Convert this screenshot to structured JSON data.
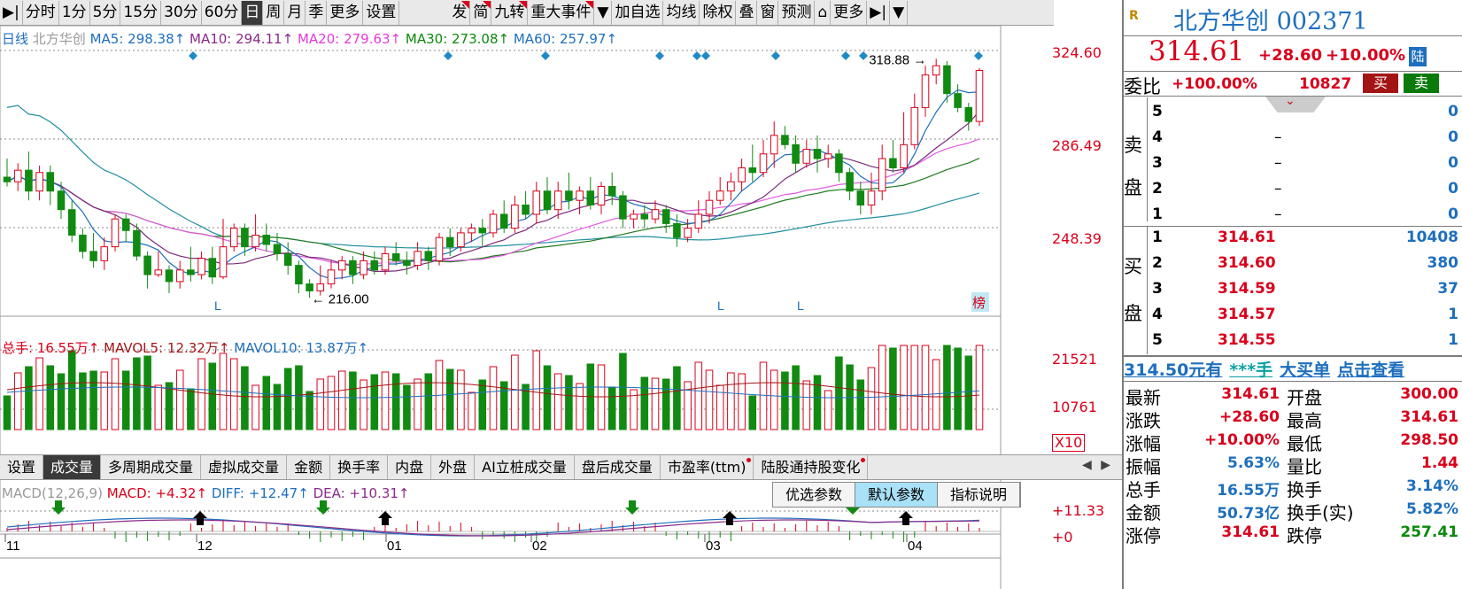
{
  "toolbar": {
    "items": [
      {
        "label": "分时",
        "active": false,
        "mark": false
      },
      {
        "label": "1分",
        "active": false,
        "mark": false
      },
      {
        "label": "5分",
        "active": false,
        "mark": false
      },
      {
        "label": "15分",
        "active": false,
        "mark": false
      },
      {
        "label": "30分",
        "active": false,
        "mark": false
      },
      {
        "label": "60分",
        "active": false,
        "mark": false
      },
      {
        "label": "日",
        "active": true,
        "mark": false
      },
      {
        "label": "周",
        "active": false,
        "mark": false
      },
      {
        "label": "月",
        "active": false,
        "mark": false
      },
      {
        "label": "季",
        "active": false,
        "mark": false
      },
      {
        "label": "更多",
        "active": false,
        "mark": false
      },
      {
        "label": "设置",
        "active": false,
        "mark": false
      }
    ],
    "right_items": [
      {
        "label": "发",
        "mark": true
      },
      {
        "label": "简",
        "mark": true
      },
      {
        "label": "九转",
        "mark": true
      },
      {
        "label": "重大事件",
        "mark": true
      },
      {
        "label": "▼",
        "mark": false
      },
      {
        "label": "加自选",
        "mark": false
      },
      {
        "label": "均线",
        "mark": false
      },
      {
        "label": "除权",
        "mark": false
      },
      {
        "label": "叠",
        "mark": false
      },
      {
        "label": "窗",
        "mark": false
      },
      {
        "label": "预测",
        "mark": false
      },
      {
        "label": "⌂",
        "mark": false
      },
      {
        "label": "更多",
        "mark": false
      },
      {
        "label": "▶|",
        "mark": false
      },
      {
        "label": "▼",
        "mark": false
      }
    ]
  },
  "price_legend": {
    "period": "日线",
    "name": "北方华创",
    "ma5": "MA5: 298.38↑",
    "ma10": "MA10: 294.11↑",
    "ma20": "MA20: 279.63↑",
    "ma30": "MA30: 273.08↑",
    "ma60": "MA60: 257.97↑"
  },
  "vol_legend": {
    "total": "总手: 16.55万↑",
    "mavol5": "MAVOL5: 12.32万↑",
    "mavol10": "MAVOL10: 13.87万↑"
  },
  "macd_legend": {
    "title": "MACD(12,26,9)",
    "macd": "MACD: +4.32↑",
    "diff": "DIFF: +12.47↑",
    "dea": "DEA: +10.31↑"
  },
  "price_axis": [
    "324.60",
    "286.49",
    "248.39"
  ],
  "vol_axis": [
    "21521",
    "10761",
    "X10"
  ],
  "macd_axis": [
    "+11.33",
    "+0"
  ],
  "date_axis": [
    "11",
    "12",
    "01",
    "02",
    "03",
    "04"
  ],
  "annotations": {
    "high": "318.88",
    "low": "216.00",
    "l_marks": [
      "L",
      "L",
      "L"
    ],
    "bang": "榜"
  },
  "bottom_tabs": [
    {
      "label": "设置",
      "active": false,
      "dot": false
    },
    {
      "label": "成交量",
      "active": true,
      "dot": false
    },
    {
      "label": "多周期成交量",
      "active": false,
      "dot": false
    },
    {
      "label": "虚拟成交量",
      "active": false,
      "dot": false
    },
    {
      "label": "金额",
      "active": false,
      "dot": false
    },
    {
      "label": "换手率",
      "active": false,
      "dot": false
    },
    {
      "label": "内盘",
      "active": false,
      "dot": false
    },
    {
      "label": "外盘",
      "active": false,
      "dot": false
    },
    {
      "label": "AI立桩成交量",
      "active": false,
      "dot": false
    },
    {
      "label": "盘后成交量",
      "active": false,
      "dot": false
    },
    {
      "label": "市盈率(ttm)",
      "active": false,
      "dot": true
    },
    {
      "label": "陆股通持股变化",
      "active": false,
      "dot": true
    }
  ],
  "scroll_arrows": [
    "◀",
    "▶"
  ],
  "params": [
    {
      "label": "优选参数",
      "active": false
    },
    {
      "label": "默认参数",
      "active": true
    },
    {
      "label": "指标说明",
      "active": false
    }
  ],
  "chart_data": {
    "type": "candlestick",
    "price_range": [
      210,
      326
    ],
    "high": 318.88,
    "low": 216.0,
    "candles": [
      [
        268,
        266,
        276,
        264
      ],
      [
        266,
        271,
        274,
        262
      ],
      [
        271,
        262,
        279,
        258
      ],
      [
        262,
        270,
        273,
        258
      ],
      [
        270,
        262,
        273,
        256
      ],
      [
        262,
        254,
        266,
        250
      ],
      [
        254,
        243,
        258,
        240
      ],
      [
        243,
        236,
        246,
        233
      ],
      [
        236,
        232,
        244,
        229
      ],
      [
        232,
        238,
        242,
        228
      ],
      [
        238,
        250,
        252,
        236
      ],
      [
        250,
        245,
        252,
        240
      ],
      [
        245,
        234,
        248,
        232
      ],
      [
        234,
        226,
        236,
        220
      ],
      [
        226,
        228,
        236,
        225
      ],
      [
        228,
        223,
        230,
        218
      ],
      [
        223,
        228,
        232,
        220
      ],
      [
        228,
        226,
        238,
        223
      ],
      [
        226,
        233,
        236,
        224
      ],
      [
        233,
        225,
        238,
        222
      ],
      [
        225,
        238,
        250,
        224
      ],
      [
        238,
        246,
        248,
        236
      ],
      [
        246,
        238,
        248,
        234
      ],
      [
        238,
        243,
        252,
        236
      ],
      [
        243,
        239,
        248,
        236
      ],
      [
        239,
        235,
        244,
        232
      ],
      [
        235,
        230,
        240,
        226
      ],
      [
        230,
        222,
        232,
        218
      ],
      [
        222,
        219,
        224,
        216
      ],
      [
        219,
        222,
        230,
        217
      ],
      [
        222,
        228,
        232,
        220
      ],
      [
        228,
        232,
        234,
        224
      ],
      [
        232,
        226,
        234,
        222
      ],
      [
        226,
        232,
        236,
        224
      ],
      [
        232,
        228,
        236,
        226
      ],
      [
        228,
        235,
        238,
        226
      ],
      [
        235,
        232,
        240,
        230
      ],
      [
        232,
        230,
        236,
        226
      ],
      [
        230,
        236,
        240,
        228
      ],
      [
        236,
        232,
        238,
        228
      ],
      [
        232,
        242,
        244,
        230
      ],
      [
        242,
        238,
        246,
        234
      ],
      [
        238,
        244,
        246,
        236
      ],
      [
        244,
        246,
        248,
        240
      ],
      [
        246,
        244,
        250,
        238
      ],
      [
        244,
        252,
        254,
        242
      ],
      [
        252,
        246,
        258,
        244
      ],
      [
        246,
        256,
        260,
        244
      ],
      [
        256,
        252,
        262,
        250
      ],
      [
        252,
        262,
        266,
        248
      ],
      [
        262,
        254,
        268,
        252
      ],
      [
        254,
        262,
        266,
        250
      ],
      [
        262,
        258,
        270,
        254
      ],
      [
        258,
        262,
        264,
        252
      ],
      [
        262,
        256,
        268,
        254
      ],
      [
        256,
        264,
        266,
        252
      ],
      [
        264,
        260,
        270,
        256
      ],
      [
        260,
        250,
        262,
        246
      ],
      [
        250,
        252,
        254,
        246
      ],
      [
        252,
        250,
        256,
        246
      ],
      [
        250,
        254,
        258,
        248
      ],
      [
        254,
        248,
        256,
        244
      ],
      [
        248,
        242,
        252,
        238
      ],
      [
        242,
        246,
        250,
        240
      ],
      [
        246,
        252,
        258,
        244
      ],
      [
        252,
        258,
        262,
        248
      ],
      [
        258,
        262,
        268,
        256
      ],
      [
        262,
        266,
        270,
        258
      ],
      [
        266,
        272,
        276,
        262
      ],
      [
        272,
        270,
        282,
        266
      ],
      [
        270,
        278,
        284,
        268
      ],
      [
        278,
        286,
        292,
        272
      ],
      [
        286,
        282,
        290,
        280
      ],
      [
        282,
        274,
        286,
        270
      ],
      [
        274,
        280,
        284,
        272
      ],
      [
        280,
        276,
        286,
        270
      ],
      [
        276,
        278,
        282,
        272
      ],
      [
        278,
        270,
        280,
        266
      ],
      [
        270,
        262,
        272,
        258
      ],
      [
        262,
        256,
        266,
        252
      ],
      [
        256,
        262,
        270,
        252
      ],
      [
        262,
        276,
        282,
        258
      ],
      [
        276,
        272,
        284,
        270
      ],
      [
        272,
        282,
        296,
        270
      ],
      [
        282,
        298,
        304,
        280
      ],
      [
        298,
        312,
        316,
        294
      ],
      [
        312,
        316,
        319,
        308
      ],
      [
        316,
        304,
        318,
        300
      ],
      [
        304,
        298,
        308,
        296
      ],
      [
        298,
        292,
        300,
        288
      ],
      [
        292,
        314,
        315,
        290
      ]
    ]
  }
}
